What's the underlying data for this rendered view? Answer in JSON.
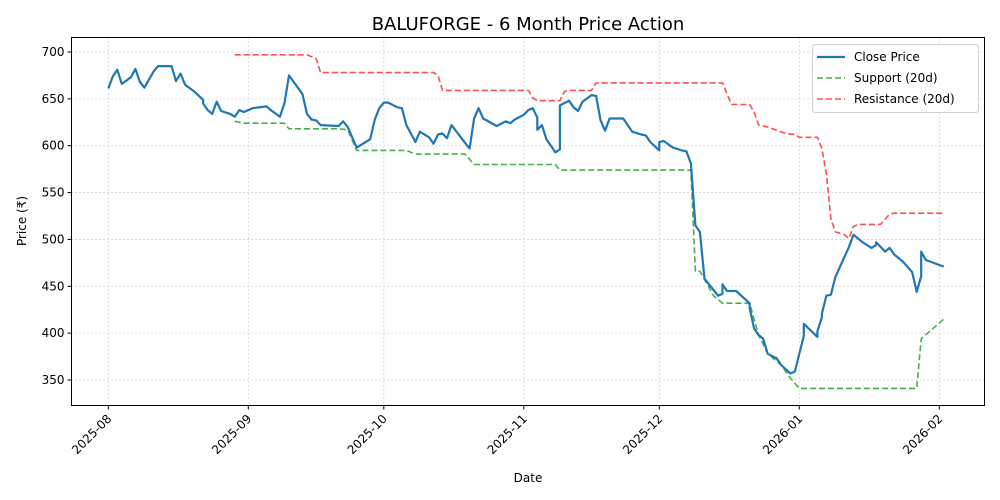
{
  "chart_data": {
    "type": "line",
    "title": "BALUFORGE - 6 Month Price Action",
    "xlabel": "Date",
    "ylabel": "Price (₹)",
    "ylim": [
      325,
      715
    ],
    "xlim": [
      "2025-07-24",
      "2026-02-11"
    ],
    "yticks": [
      350,
      400,
      450,
      500,
      550,
      600,
      650,
      700
    ],
    "xticks": [
      "2025-08",
      "2025-09",
      "2025-10",
      "2025-11",
      "2025-12",
      "2026-01",
      "2026-02"
    ],
    "grid": true,
    "legend_position": "upper right",
    "legend": [
      "Close Price",
      "Support (20d)",
      "Resistance (20d)"
    ],
    "colors": {
      "close": "#1f77b4",
      "support": "#2ca02c",
      "resistance": "#ff4444"
    },
    "series": [
      {
        "name": "Close Price",
        "style": "solid",
        "points": [
          [
            "2025-08-01",
            661
          ],
          [
            "2025-08-02",
            674
          ],
          [
            "2025-08-03",
            681
          ],
          [
            "2025-08-04",
            666
          ],
          [
            "2025-08-06",
            673
          ],
          [
            "2025-08-07",
            682
          ],
          [
            "2025-08-08",
            668
          ],
          [
            "2025-08-09",
            662
          ],
          [
            "2025-08-11",
            679
          ],
          [
            "2025-08-12",
            685
          ],
          [
            "2025-08-13",
            685
          ],
          [
            "2025-08-15",
            685
          ],
          [
            "2025-08-16",
            669
          ],
          [
            "2025-08-17",
            677
          ],
          [
            "2025-08-18",
            665
          ],
          [
            "2025-08-20",
            658
          ],
          [
            "2025-08-22",
            649
          ],
          [
            "2025-08-22",
            645
          ],
          [
            "2025-08-23",
            638
          ],
          [
            "2025-08-24",
            634
          ],
          [
            "2025-08-25",
            647
          ],
          [
            "2025-08-26",
            637
          ],
          [
            "2025-08-28",
            634
          ],
          [
            "2025-08-29",
            631
          ],
          [
            "2025-08-30",
            638
          ],
          [
            "2025-08-31",
            636
          ],
          [
            "2025-09-02",
            640
          ],
          [
            "2025-09-05",
            642
          ],
          [
            "2025-09-06",
            638
          ],
          [
            "2025-09-08",
            631
          ],
          [
            "2025-09-09",
            645
          ],
          [
            "2025-09-10",
            675
          ],
          [
            "2025-09-13",
            655
          ],
          [
            "2025-09-14",
            634
          ],
          [
            "2025-09-15",
            628
          ],
          [
            "2025-09-16",
            627
          ],
          [
            "2025-09-17",
            622
          ],
          [
            "2025-09-21",
            621
          ],
          [
            "2025-09-22",
            626
          ],
          [
            "2025-09-23",
            620
          ],
          [
            "2025-09-25",
            598
          ],
          [
            "2025-09-28",
            607
          ],
          [
            "2025-09-29",
            628
          ],
          [
            "2025-09-30",
            640
          ],
          [
            "2025-10-01",
            646
          ],
          [
            "2025-10-02",
            646
          ],
          [
            "2025-10-04",
            641
          ],
          [
            "2025-10-05",
            640
          ],
          [
            "2025-10-06",
            622
          ],
          [
            "2025-10-08",
            604
          ],
          [
            "2025-10-09",
            615
          ],
          [
            "2025-10-11",
            609
          ],
          [
            "2025-10-12",
            602
          ],
          [
            "2025-10-13",
            612
          ],
          [
            "2025-10-14",
            613
          ],
          [
            "2025-10-15",
            608
          ],
          [
            "2025-10-16",
            622
          ],
          [
            "2025-10-19",
            603
          ],
          [
            "2025-10-20",
            597
          ],
          [
            "2025-10-21",
            629
          ],
          [
            "2025-10-22",
            640
          ],
          [
            "2025-10-23",
            629
          ],
          [
            "2025-10-26",
            621
          ],
          [
            "2025-10-28",
            626
          ],
          [
            "2025-10-29",
            624
          ],
          [
            "2025-10-30",
            628
          ],
          [
            "2025-11-01",
            633
          ],
          [
            "2025-11-02",
            638
          ],
          [
            "2025-11-03",
            640
          ],
          [
            "2025-11-04",
            630
          ],
          [
            "2025-11-04",
            617
          ],
          [
            "2025-11-05",
            622
          ],
          [
            "2025-11-06",
            607
          ],
          [
            "2025-11-08",
            593
          ],
          [
            "2025-11-09",
            596
          ],
          [
            "2025-11-09",
            643
          ],
          [
            "2025-11-11",
            648
          ],
          [
            "2025-11-12",
            641
          ],
          [
            "2025-11-13",
            637
          ],
          [
            "2025-11-14",
            647
          ],
          [
            "2025-11-16",
            654
          ],
          [
            "2025-11-17",
            653
          ],
          [
            "2025-11-18",
            627
          ],
          [
            "2025-11-19",
            616
          ],
          [
            "2025-11-20",
            629
          ],
          [
            "2025-11-23",
            629
          ],
          [
            "2025-11-24",
            622
          ],
          [
            "2025-11-25",
            615
          ],
          [
            "2025-11-27",
            612
          ],
          [
            "2025-11-28",
            611
          ],
          [
            "2025-11-29",
            604
          ],
          [
            "2025-12-01",
            595
          ],
          [
            "2025-12-01",
            604
          ],
          [
            "2025-12-02",
            605
          ],
          [
            "2025-12-04",
            598
          ],
          [
            "2025-12-06",
            595
          ],
          [
            "2025-12-07",
            594
          ],
          [
            "2025-12-08",
            581
          ],
          [
            "2025-12-09",
            515
          ],
          [
            "2025-12-10",
            508
          ],
          [
            "2025-12-11",
            458
          ],
          [
            "2025-12-13",
            446
          ],
          [
            "2025-12-14",
            440
          ],
          [
            "2025-12-15",
            442
          ],
          [
            "2025-12-15",
            452
          ],
          [
            "2025-12-16",
            445
          ],
          [
            "2025-12-18",
            445
          ],
          [
            "2025-12-21",
            432
          ],
          [
            "2025-12-21",
            427
          ],
          [
            "2025-12-22",
            405
          ],
          [
            "2025-12-23",
            398
          ],
          [
            "2025-12-24",
            394
          ],
          [
            "2025-12-25",
            378
          ],
          [
            "2025-12-25",
            378
          ],
          [
            "2025-12-27",
            373
          ],
          [
            "2025-12-28",
            366
          ],
          [
            "2025-12-30",
            357
          ],
          [
            "2025-12-31",
            359
          ],
          [
            "2026-01-02",
            397
          ],
          [
            "2026-01-02",
            410
          ],
          [
            "2026-01-05",
            396
          ],
          [
            "2026-01-05",
            402
          ],
          [
            "2026-01-06",
            417
          ],
          [
            "2026-01-06",
            421
          ],
          [
            "2026-01-07",
            440
          ],
          [
            "2026-01-08",
            441
          ],
          [
            "2026-01-09",
            460
          ],
          [
            "2026-01-12",
            492
          ],
          [
            "2026-01-13",
            505
          ],
          [
            "2026-01-14",
            501
          ],
          [
            "2026-01-15",
            497
          ],
          [
            "2026-01-17",
            491
          ],
          [
            "2026-01-18",
            494
          ],
          [
            "2026-01-18",
            497
          ],
          [
            "2026-01-20",
            487
          ],
          [
            "2026-01-21",
            491
          ],
          [
            "2026-01-22",
            484
          ],
          [
            "2026-01-24",
            476
          ],
          [
            "2026-01-26",
            465
          ],
          [
            "2026-01-27",
            444
          ],
          [
            "2026-01-28",
            461
          ],
          [
            "2026-01-28",
            487
          ],
          [
            "2026-01-29",
            478
          ],
          [
            "2026-02-02",
            471
          ]
        ]
      },
      {
        "name": "Support (20d)",
        "style": "dashed",
        "points": [
          [
            "2025-08-29",
            626
          ],
          [
            "2025-08-31",
            624
          ],
          [
            "2025-09-09",
            624
          ],
          [
            "2025-09-10",
            618
          ],
          [
            "2025-09-21",
            618
          ],
          [
            "2025-09-23",
            617
          ],
          [
            "2025-09-25",
            595
          ],
          [
            "2025-10-06",
            595
          ],
          [
            "2025-10-08",
            591
          ],
          [
            "2025-10-19",
            591
          ],
          [
            "2025-10-21",
            580
          ],
          [
            "2025-11-08",
            580
          ],
          [
            "2025-11-09",
            574
          ],
          [
            "2025-12-08",
            574
          ],
          [
            "2025-12-09",
            466
          ],
          [
            "2025-12-10",
            466
          ],
          [
            "2025-12-13",
            440
          ],
          [
            "2025-12-15",
            432
          ],
          [
            "2025-12-21",
            432
          ],
          [
            "2025-12-23",
            398
          ],
          [
            "2025-12-25",
            378
          ],
          [
            "2025-12-28",
            366
          ],
          [
            "2025-12-30",
            352
          ],
          [
            "2026-01-01",
            341
          ],
          [
            "2026-01-27",
            341
          ],
          [
            "2026-01-28",
            394
          ],
          [
            "2026-02-02",
            415
          ]
        ]
      },
      {
        "name": "Resistance (20d)",
        "style": "dashed",
        "points": [
          [
            "2025-08-29",
            697
          ],
          [
            "2025-09-14",
            697
          ],
          [
            "2025-09-16",
            693
          ],
          [
            "2025-09-17",
            678
          ],
          [
            "2025-10-12",
            678
          ],
          [
            "2025-10-13",
            675
          ],
          [
            "2025-10-14",
            659
          ],
          [
            "2025-11-02",
            659
          ],
          [
            "2025-11-03",
            651
          ],
          [
            "2025-11-04",
            648
          ],
          [
            "2025-11-09",
            648
          ],
          [
            "2025-11-10",
            658
          ],
          [
            "2025-11-11",
            659
          ],
          [
            "2025-11-16",
            659
          ],
          [
            "2025-11-17",
            667
          ],
          [
            "2025-12-15",
            667
          ],
          [
            "2025-12-17",
            644
          ],
          [
            "2025-12-21",
            644
          ],
          [
            "2025-12-22",
            636
          ],
          [
            "2025-12-23",
            622
          ],
          [
            "2025-12-25",
            620
          ],
          [
            "2025-12-29",
            613
          ],
          [
            "2025-12-31",
            612
          ],
          [
            "2026-01-01",
            609
          ],
          [
            "2026-01-05",
            609
          ],
          [
            "2026-01-06",
            597
          ],
          [
            "2026-01-07",
            570
          ],
          [
            "2026-01-08",
            522
          ],
          [
            "2026-01-09",
            508
          ],
          [
            "2026-01-11",
            505
          ],
          [
            "2026-01-12",
            501
          ],
          [
            "2026-01-13",
            514
          ],
          [
            "2026-01-14",
            516
          ],
          [
            "2026-01-19",
            516
          ],
          [
            "2026-01-21",
            527
          ],
          [
            "2026-01-22",
            528
          ],
          [
            "2026-02-02",
            528
          ]
        ]
      }
    ]
  }
}
